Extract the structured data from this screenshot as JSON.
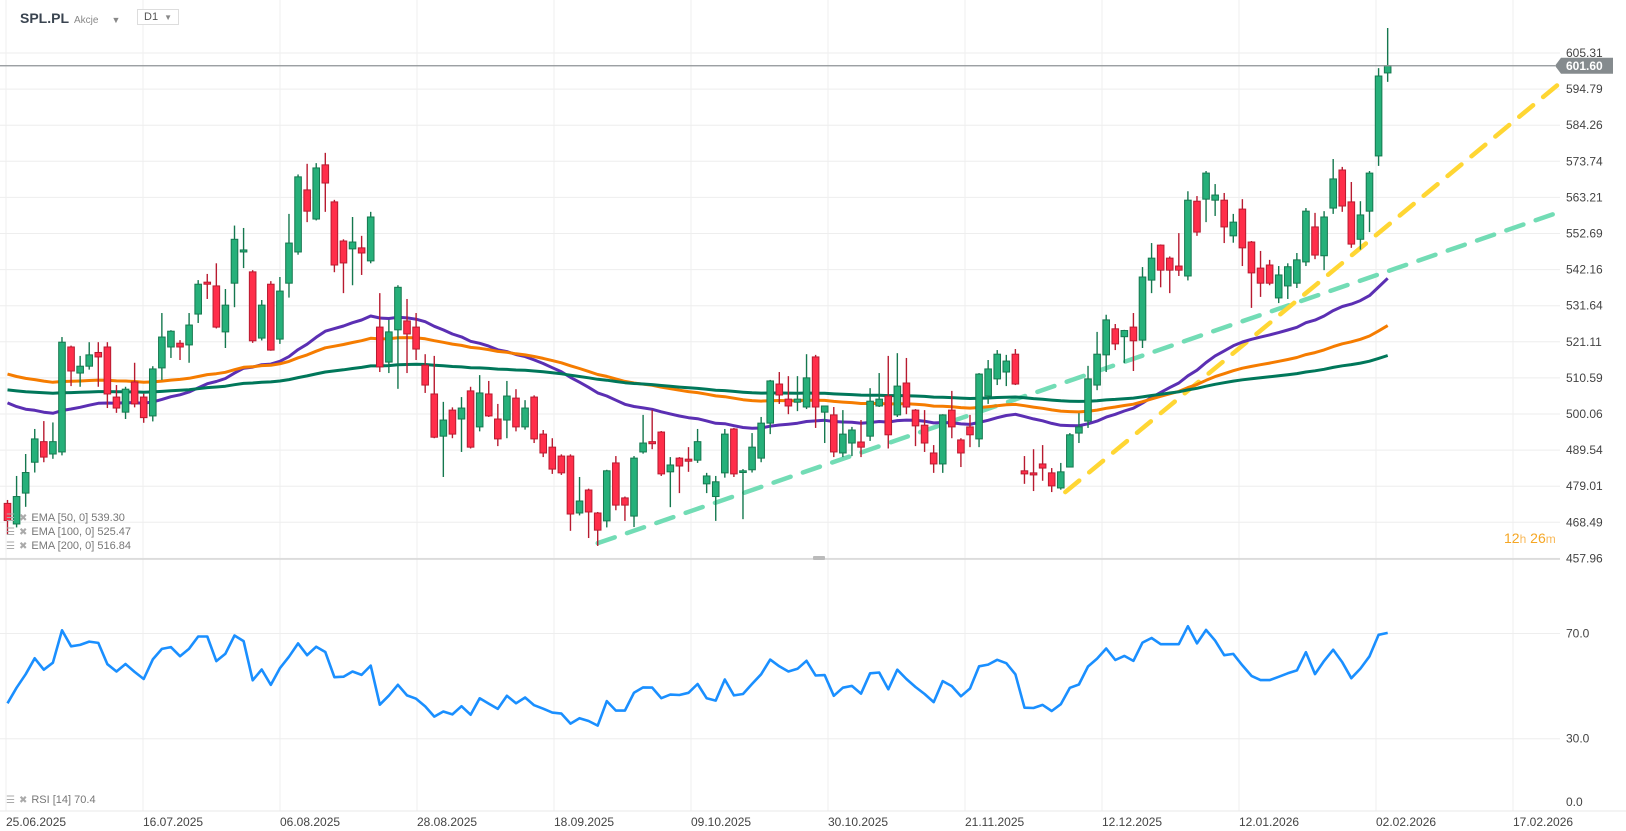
{
  "header": {
    "symbol": "SPL.PL",
    "type": "Akcje",
    "timeframe": "D1"
  },
  "legend": {
    "ema50": "EMA  [50,  0]  539.30",
    "ema100": "EMA  [100,  0]  525.47",
    "ema200": "EMA  [200,  0]  516.84",
    "rsi": "RSI  [14]  70.4"
  },
  "countdown": {
    "hours": "12",
    "h": "h",
    "minutes": "26",
    "m": "m"
  },
  "colors": {
    "up": "#26b07a",
    "up_border": "#15784f",
    "down": "#ff2e4a",
    "down_border": "#b81b30",
    "ema50": "#5b2fb3",
    "ema100": "#f57c00",
    "ema200": "#00775a",
    "rsi": "#1a8fff",
    "trend_teal": "#72dcb5",
    "trend_yellow": "#ffd633",
    "price_tag": "#858b8e"
  },
  "chart_data": {
    "type": "candlestick",
    "symbol": "SPL.PL",
    "interval": "D1",
    "last_price": "601.60",
    "y_ticks": [
      "605.31",
      "594.79",
      "584.26",
      "573.74",
      "563.21",
      "552.69",
      "542.16",
      "531.64",
      "521.11",
      "510.59",
      "500.06",
      "489.54",
      "479.01",
      "468.49",
      "457.96"
    ],
    "x_ticks": [
      "25.06.2025",
      "16.07.2025",
      "06.08.2025",
      "28.08.2025",
      "18.09.2025",
      "09.10.2025",
      "30.10.2025",
      "21.11.2025",
      "12.12.2025",
      "12.01.2026",
      "02.02.2026",
      "17.02.2026"
    ],
    "ohlc_fields": [
      "open",
      "high",
      "low",
      "close"
    ],
    "ohlc": [
      [
        474,
        475,
        465,
        469
      ],
      [
        468,
        482,
        467,
        476
      ],
      [
        477,
        488.4,
        473,
        483
      ],
      [
        486,
        495.7,
        483,
        492.8
      ],
      [
        492,
        498,
        486,
        487.5
      ],
      [
        488.4,
        497.6,
        487,
        492
      ],
      [
        489,
        522.5,
        488,
        521
      ],
      [
        519.6,
        520,
        508.2,
        512.6
      ],
      [
        512,
        517,
        508,
        514
      ],
      [
        514,
        521,
        513,
        517.3
      ],
      [
        518,
        521,
        508,
        516.7
      ],
      [
        519.6,
        521,
        501.8,
        505.9
      ],
      [
        505,
        508.5,
        500.4,
        501.8
      ],
      [
        500.6,
        508,
        498.6,
        507.3
      ],
      [
        509.4,
        515,
        502,
        503
      ],
      [
        505,
        506,
        497.5,
        499
      ],
      [
        499.5,
        514,
        497.9,
        513.2
      ],
      [
        513.5,
        529.5,
        510,
        522.5
      ],
      [
        519.6,
        524.5,
        516.4,
        524.2
      ],
      [
        520.7,
        521.6,
        515.8,
        519.6
      ],
      [
        520.2,
        529.5,
        515,
        526
      ],
      [
        529.2,
        539.1,
        526.6,
        537.9
      ],
      [
        538.5,
        540.9,
        533.6,
        537.9
      ],
      [
        537.4,
        544,
        525,
        525.4
      ],
      [
        524,
        536.5,
        519.3,
        531.8
      ],
      [
        538.2,
        555,
        531.2,
        551
      ],
      [
        547.3,
        554.3,
        542.6,
        547.9
      ],
      [
        541.5,
        542,
        520.8,
        521.4
      ],
      [
        522.2,
        533.3,
        521.5,
        531.8
      ],
      [
        537.9,
        538.8,
        518.5,
        518.7
      ],
      [
        521.9,
        540,
        520.5,
        535.9
      ],
      [
        538.2,
        558.4,
        534,
        549.9
      ],
      [
        547.3,
        569.9,
        546.5,
        569.2
      ],
      [
        565.4,
        573,
        556,
        559.2
      ],
      [
        556.9,
        573.2,
        556.5,
        571.8
      ],
      [
        572.7,
        576.2,
        559,
        567.4
      ],
      [
        561.9,
        562.5,
        541.4,
        543.5
      ],
      [
        550.5,
        551,
        535.3,
        544.1
      ],
      [
        548.2,
        557.5,
        537.6,
        550.2
      ],
      [
        548.5,
        552,
        540.6,
        547
      ],
      [
        544.7,
        559,
        544,
        557.5
      ],
      [
        525.4,
        535.3,
        512.3,
        513.8
      ],
      [
        515.2,
        527.5,
        512,
        524
      ],
      [
        524.6,
        537.6,
        507.4,
        537
      ],
      [
        527.2,
        533.6,
        512,
        523.4
      ],
      [
        525.4,
        529.5,
        515.8,
        519
      ],
      [
        514.3,
        517.5,
        506.2,
        508.5
      ],
      [
        505.9,
        517,
        493,
        493.3
      ],
      [
        493.6,
        503.6,
        481.7,
        498.3
      ],
      [
        501.2,
        502,
        493,
        494.2
      ],
      [
        498.6,
        505,
        489,
        501.8
      ],
      [
        506.8,
        508,
        490,
        490.4
      ],
      [
        496.3,
        511.4,
        495,
        506.2
      ],
      [
        505.9,
        509.7,
        499.2,
        499.5
      ],
      [
        498.6,
        503,
        490.7,
        492.8
      ],
      [
        498.3,
        509.7,
        493,
        505.3
      ],
      [
        504.7,
        507.3,
        495,
        496.3
      ],
      [
        496.3,
        504.1,
        495.5,
        501.8
      ],
      [
        505,
        505.5,
        491.6,
        492.8
      ],
      [
        494.2,
        495.4,
        487.5,
        488.7
      ],
      [
        490.4,
        493,
        482.6,
        484
      ],
      [
        487.8,
        488.3,
        482.3,
        482.9
      ],
      [
        487.8,
        488.3,
        466,
        470.9
      ],
      [
        471.2,
        481.7,
        470.5,
        474.7
      ],
      [
        477.9,
        478.3,
        463.9,
        471.5
      ],
      [
        471.2,
        471.5,
        461.6,
        466.2
      ],
      [
        468.9,
        483.8,
        467,
        483.5
      ],
      [
        485.8,
        487.8,
        472,
        473.5
      ],
      [
        475.6,
        476,
        468.9,
        473.5
      ],
      [
        470.3,
        487.8,
        467.1,
        487.2
      ],
      [
        489,
        499.8,
        488.5,
        491.6
      ],
      [
        492,
        501.2,
        489.8,
        491.4
      ],
      [
        494.8,
        495.1,
        482,
        482.6
      ],
      [
        483.2,
        487.5,
        472.9,
        485.2
      ],
      [
        487.2,
        487.5,
        477,
        484.9
      ],
      [
        486.9,
        490.4,
        483.2,
        486.3
      ],
      [
        486.6,
        495.7,
        485.8,
        492
      ],
      [
        479.7,
        482.9,
        477,
        482
      ],
      [
        476,
        482,
        468.9,
        480.3
      ],
      [
        482.9,
        495.7,
        481.5,
        494.2
      ],
      [
        495.7,
        496,
        481.7,
        482.6
      ],
      [
        483,
        484,
        469.4,
        483.5
      ],
      [
        483.8,
        494.5,
        483,
        490.4
      ],
      [
        487.2,
        499.2,
        486,
        497.4
      ],
      [
        497.4,
        510,
        494.2,
        509.7
      ],
      [
        508.8,
        512.3,
        503,
        505.6
      ],
      [
        504.4,
        511.1,
        500,
        502.4
      ],
      [
        503.5,
        511.1,
        500.9,
        504.4
      ],
      [
        502.1,
        517.5,
        501.5,
        510.6
      ],
      [
        516.7,
        517.3,
        496,
        502.1
      ],
      [
        500.6,
        502.5,
        491.6,
        502.4
      ],
      [
        499.8,
        502.1,
        487.5,
        489
      ],
      [
        488.7,
        501.2,
        487.5,
        494.2
      ],
      [
        491.6,
        496.3,
        487.8,
        495.4
      ],
      [
        491.9,
        498.3,
        487.5,
        490.4
      ],
      [
        493.6,
        507.6,
        492.2,
        503.8
      ],
      [
        502.4,
        512,
        502.1,
        504.4
      ],
      [
        505.3,
        517,
        490,
        494
      ],
      [
        499.8,
        517.8,
        499.2,
        508.2
      ],
      [
        509.1,
        516.4,
        500,
        502.1
      ],
      [
        501.2,
        501.5,
        490.7,
        496.6
      ],
      [
        496.8,
        501.2,
        489,
        491.6
      ],
      [
        488.7,
        491,
        482.9,
        485.5
      ],
      [
        485.5,
        500,
        482.9,
        499.8
      ],
      [
        501.2,
        506.8,
        493,
        496.3
      ],
      [
        492.5,
        493,
        484.6,
        488.7
      ],
      [
        496.3,
        499.8,
        490.4,
        494
      ],
      [
        492.8,
        512,
        490.4,
        511.7
      ],
      [
        505.3,
        515.8,
        503,
        513.2
      ],
      [
        510.3,
        518.7,
        508.5,
        517.5
      ],
      [
        512.3,
        517.3,
        508.2,
        515.5
      ],
      [
        517.5,
        519,
        508.5,
        508.8
      ],
      [
        483.5,
        487.8,
        479.7,
        482.6
      ],
      [
        482.9,
        489.8,
        477.6,
        482.3
      ],
      [
        485.5,
        491,
        480.6,
        484.3
      ],
      [
        482.9,
        484.3,
        477.3,
        479.1
      ],
      [
        478.5,
        485.8,
        478,
        483.2
      ],
      [
        484.6,
        494.5,
        484.5,
        494
      ],
      [
        494.5,
        500.3,
        491.6,
        496.3
      ],
      [
        498,
        514.1,
        496,
        510.3
      ],
      [
        508.5,
        524,
        507,
        517.5
      ],
      [
        517.3,
        529,
        512.3,
        527.5
      ],
      [
        524.9,
        526.3,
        518.7,
        520.5
      ],
      [
        522.6,
        524.6,
        514.9,
        524.4
      ],
      [
        525.4,
        529.5,
        512.6,
        521.4
      ],
      [
        521.6,
        542.9,
        519.3,
        540
      ],
      [
        539.1,
        549.9,
        535.3,
        545.5
      ],
      [
        549.3,
        549.5,
        537,
        542
      ],
      [
        545.5,
        546,
        535.3,
        542
      ],
      [
        543.2,
        552.8,
        540.3,
        542
      ],
      [
        540.3,
        565,
        539,
        562.4
      ],
      [
        562.1,
        563.6,
        552,
        553.1
      ],
      [
        562.7,
        570.9,
        556,
        570.3
      ],
      [
        562.4,
        567.1,
        557.8,
        563.9
      ],
      [
        562.4,
        564.5,
        549.9,
        554.6
      ],
      [
        552,
        558.4,
        550,
        556
      ],
      [
        559.8,
        562.7,
        543.2,
        548.5
      ],
      [
        550.2,
        550.5,
        531,
        541.2
      ],
      [
        542.6,
        547.6,
        534.2,
        538.2
      ],
      [
        543.5,
        545,
        537.6,
        538.2
      ],
      [
        533.9,
        543.2,
        532.4,
        540.6
      ],
      [
        537.4,
        544,
        533.6,
        543
      ],
      [
        538.2,
        547,
        536.8,
        545
      ],
      [
        544.4,
        560.1,
        543.2,
        559.2
      ],
      [
        554.6,
        558.7,
        545.2,
        546.4
      ],
      [
        546.2,
        559.2,
        542,
        557.5
      ],
      [
        560.1,
        574.4,
        558.4,
        568.6
      ],
      [
        571.2,
        572.1,
        559,
        560.7
      ],
      [
        561.9,
        567.7,
        548.5,
        549.6
      ],
      [
        551,
        562.1,
        548,
        558.1
      ],
      [
        559.2,
        570.9,
        553.1,
        570.3
      ],
      [
        575.3,
        600.9,
        572.4,
        598.6
      ],
      [
        599.5,
        612.6,
        596.9,
        601.6
      ]
    ],
    "ema": [
      {
        "period": 50,
        "seed": 503.3,
        "last": 539.3
      },
      {
        "period": 100,
        "seed": 511.7,
        "last": 525.47
      },
      {
        "period": 200,
        "seed": 507.1,
        "last": 516.84
      }
    ],
    "trendlines": [
      {
        "name": "teal-support",
        "from": [
          65,
          462.4
        ],
        "to": [
          171,
          559.0
        ]
      },
      {
        "name": "yellow-support",
        "from": [
          116.5,
          477.3
        ],
        "to": [
          171,
          596.6
        ]
      }
    ],
    "rsi": {
      "period": 14,
      "seed_avg_gain": 2.0,
      "seed_avg_loss": 2.6,
      "last": 70.4,
      "ticks": [
        "70.0",
        "30.0",
        "0.0"
      ],
      "levels": [
        70,
        30,
        0
      ]
    }
  }
}
